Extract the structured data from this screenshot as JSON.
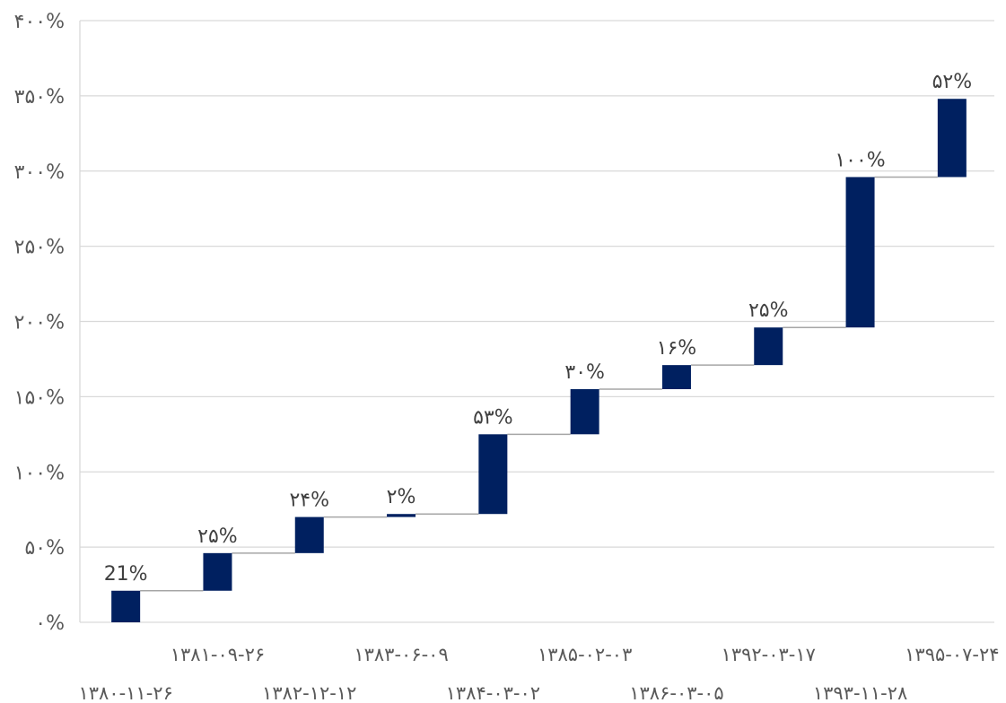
{
  "chart_data": {
    "type": "bar",
    "subtype": "waterfall",
    "title": "",
    "xlabel": "",
    "ylabel": "",
    "ylim": [
      0,
      400
    ],
    "yticks": [
      "۰%",
      "۵۰%",
      "۱۰۰%",
      "۱۵۰%",
      "۲۰۰%",
      "۲۵۰%",
      "۳۰۰%",
      "۳۵۰%",
      "۴۰۰%"
    ],
    "grid": true,
    "legend": "none",
    "bar_color": "#002060",
    "connector_color": "#A6A6A6",
    "categories": [
      "۱۳۸۰-۱۱-۲۶",
      "۱۳۸۱-۰۹-۲۶",
      "۱۳۸۲-۱۲-۱۲",
      "۱۳۸۳-۰۶-۰۹",
      "۱۳۸۴-۰۳-۰۲",
      "۱۳۸۵-۰۲-۰۳",
      "۱۳۸۶-۰۳-۰۵",
      "۱۳۹۲-۰۳-۱۷",
      "۱۳۹۳-۱۱-۲۸",
      "۱۳۹۵-۰۷-۲۴"
    ],
    "values": [
      21,
      25,
      24,
      2,
      53,
      30,
      16,
      25,
      100,
      52
    ],
    "data_labels": [
      "21%",
      "۲۵%",
      "۲۴%",
      "۲%",
      "۵۳%",
      "۳۰%",
      "۱۶%",
      "۲۵%",
      "۱۰۰%",
      "۵۲%"
    ]
  }
}
